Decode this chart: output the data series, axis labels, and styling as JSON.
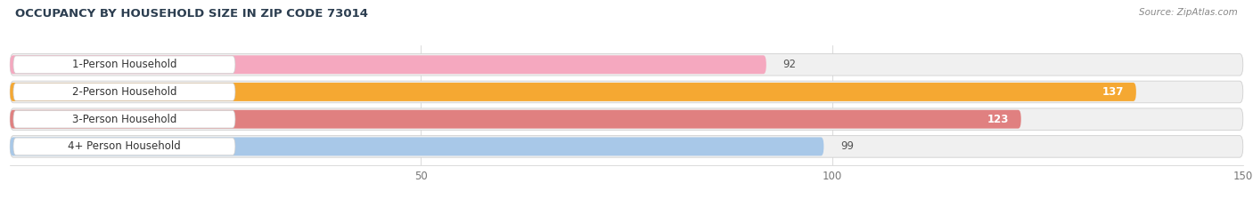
{
  "title": "OCCUPANCY BY HOUSEHOLD SIZE IN ZIP CODE 73014",
  "source": "Source: ZipAtlas.com",
  "categories": [
    "1-Person Household",
    "2-Person Household",
    "3-Person Household",
    "4+ Person Household"
  ],
  "values": [
    92,
    137,
    123,
    99
  ],
  "bar_colors": [
    "#f5a8bf",
    "#f5a832",
    "#e08080",
    "#a8c8e8"
  ],
  "label_bg_color": "#ffffff",
  "bg_bar_color": "#f0f0f0",
  "xlim": [
    0,
    150
  ],
  "xticks": [
    50,
    100,
    150
  ],
  "value_label_colors": [
    "#555555",
    "#ffffff",
    "#ffffff",
    "#555555"
  ],
  "figsize": [
    14.06,
    2.33
  ],
  "dpi": 100,
  "title_color": "#2c3e50",
  "source_color": "#888888",
  "bg_figure": "#ffffff"
}
